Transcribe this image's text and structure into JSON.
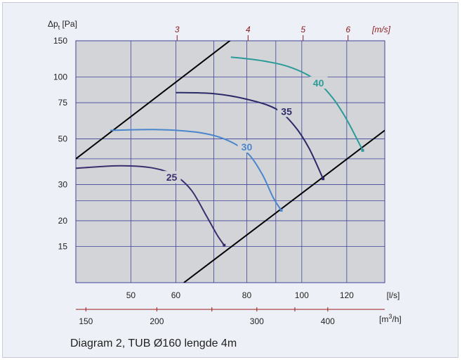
{
  "caption": "Diagram 2, TUB Ø160 lengde 4m",
  "chart_data": {
    "type": "line",
    "x_scale": "log",
    "y_scale": "log",
    "xlim": [
      40,
      140
    ],
    "ylim": [
      10,
      150
    ],
    "ylabel_prefix": "Δp",
    "ylabel_sub": "t",
    "ylabel_suffix": "[Pa]",
    "xlabel": "[l/s]",
    "x_ticks": [
      {
        "v": 50,
        "label": "50"
      },
      {
        "v": 60,
        "label": "60"
      },
      {
        "v": 70,
        "label": ""
      },
      {
        "v": 80,
        "label": "80"
      },
      {
        "v": 90,
        "label": ""
      },
      {
        "v": 100,
        "label": "100"
      },
      {
        "v": 120,
        "label": "120"
      }
    ],
    "y_ticks": [
      {
        "v": 15,
        "label": "15"
      },
      {
        "v": 20,
        "label": "20"
      },
      {
        "v": 25,
        "label": ""
      },
      {
        "v": 30,
        "label": "30"
      },
      {
        "v": 40,
        "label": ""
      },
      {
        "v": 50,
        "label": "50"
      },
      {
        "v": 75,
        "label": "75"
      },
      {
        "v": 100,
        "label": "100"
      },
      {
        "v": 150,
        "label": "150"
      }
    ],
    "m3h_axis": {
      "label_base": "[m",
      "label_sup": "3",
      "label_tail": "/h]",
      "ticks": [
        {
          "v": 150,
          "label": "150"
        },
        {
          "v": 200,
          "label": "200"
        },
        {
          "v": 250,
          "label": ""
        },
        {
          "v": 300,
          "label": "300"
        },
        {
          "v": 350,
          "label": ""
        },
        {
          "v": 400,
          "label": "400"
        }
      ]
    },
    "velocity_axis": {
      "label": "[m/s]",
      "ticks": [
        {
          "v": 3,
          "label": "3"
        },
        {
          "v": 4,
          "label": "4"
        },
        {
          "v": 5,
          "label": "5"
        },
        {
          "v": 6,
          "label": "6"
        }
      ]
    },
    "series": [
      {
        "name": "25",
        "color": "#3b2e6e",
        "points": [
          [
            40,
            36
          ],
          [
            48,
            37
          ],
          [
            55,
            36
          ],
          [
            60,
            33
          ],
          [
            64,
            28
          ],
          [
            68,
            21
          ],
          [
            71,
            17
          ],
          [
            73,
            15.2
          ]
        ],
        "label_at": [
          59,
          32
        ]
      },
      {
        "name": "30",
        "color": "#4a86cc",
        "points": [
          [
            46,
            55
          ],
          [
            55,
            55.5
          ],
          [
            65,
            54
          ],
          [
            73,
            50
          ],
          [
            80,
            43
          ],
          [
            85,
            34
          ],
          [
            89,
            26
          ],
          [
            92,
            22.5
          ]
        ],
        "label_at": [
          80,
          45
        ]
      },
      {
        "name": "35",
        "color": "#2d2a6a",
        "points": [
          [
            60,
            84
          ],
          [
            70,
            83
          ],
          [
            80,
            78
          ],
          [
            90,
            70
          ],
          [
            97,
            58
          ],
          [
            103,
            45
          ],
          [
            109,
            32
          ]
        ],
        "label_at": [
          94,
          67
        ]
      },
      {
        "name": "40",
        "color": "#2a9b98",
        "points": [
          [
            75,
            125
          ],
          [
            85,
            120
          ],
          [
            95,
            112
          ],
          [
            105,
            98
          ],
          [
            113,
            80
          ],
          [
            120,
            62
          ],
          [
            128,
            44
          ]
        ],
        "label_at": [
          107,
          92
        ]
      }
    ],
    "system_lines": [
      {
        "color": "#000000",
        "points": [
          [
            40,
            40
          ],
          [
            77,
            160
          ]
        ]
      },
      {
        "color": "#000000",
        "points": [
          [
            62,
            10
          ],
          [
            140,
            55
          ]
        ]
      }
    ],
    "colors": {
      "plot_bg": "#d3d4d8",
      "grid": "#3f4598",
      "axis_text": "#222222",
      "velocity_text": "#8b1a1a",
      "m3h_line": "#9b1b1b",
      "frame_bg": "#eef0f7"
    }
  }
}
